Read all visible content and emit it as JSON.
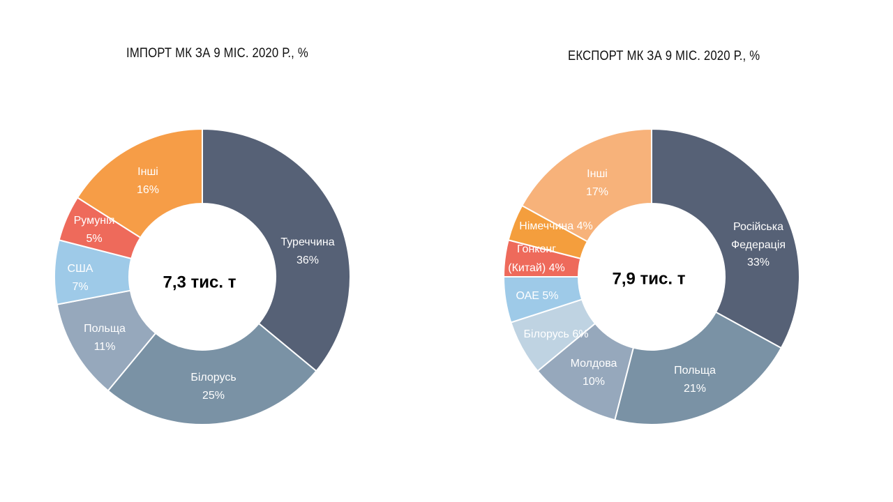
{
  "chart_data": [
    {
      "type": "pie",
      "title": "ІМПОРТ МК ЗА 9 МІС. 2020 Р., %",
      "center_label": "7,3 тис. т",
      "slices": [
        {
          "label": "Туреччина",
          "value_label": "36%",
          "value": 36,
          "color": "#566176"
        },
        {
          "label": "Білорусь",
          "value_label": "25%",
          "value": 25,
          "color": "#7a92a5"
        },
        {
          "label": "Польща",
          "value_label": "11%",
          "value": 11,
          "color": "#96a8bc"
        },
        {
          "label": "США",
          "value_label": "7%",
          "value": 7,
          "color": "#9ecae8"
        },
        {
          "label": "Румунія",
          "value_label": "5%",
          "value": 5,
          "color": "#ee6a5b"
        },
        {
          "label": "Інші",
          "value_label": "16%",
          "value": 16,
          "color": "#f69d47"
        }
      ]
    },
    {
      "type": "pie",
      "title": "ЕКСПОРТ МК ЗА 9 МІС. 2020 Р., %",
      "center_label": "7,9 тис. т",
      "slices": [
        {
          "label": "Російська Федерація",
          "value_label": "33%",
          "value": 33,
          "color": "#566176"
        },
        {
          "label": "Польща",
          "value_label": "21%",
          "value": 21,
          "color": "#7a92a5"
        },
        {
          "label": "Молдова",
          "value_label": "10%",
          "value": 10,
          "color": "#96a8bc"
        },
        {
          "label": "Білорусь",
          "value_label": "6%",
          "value": 6,
          "color": "#bfd3e2"
        },
        {
          "label": "ОАЕ",
          "value_label": "5%",
          "value": 5,
          "color": "#9ecae8"
        },
        {
          "label": "Гонконг (Китай)",
          "value_label": "4%",
          "value": 4,
          "color": "#ee6a5b"
        },
        {
          "label": "Німеччина",
          "value_label": "4%",
          "value": 4,
          "color": "#f49e3d"
        },
        {
          "label": "Інші",
          "value_label": "17%",
          "value": 17,
          "color": "#f7b27a"
        }
      ]
    }
  ]
}
